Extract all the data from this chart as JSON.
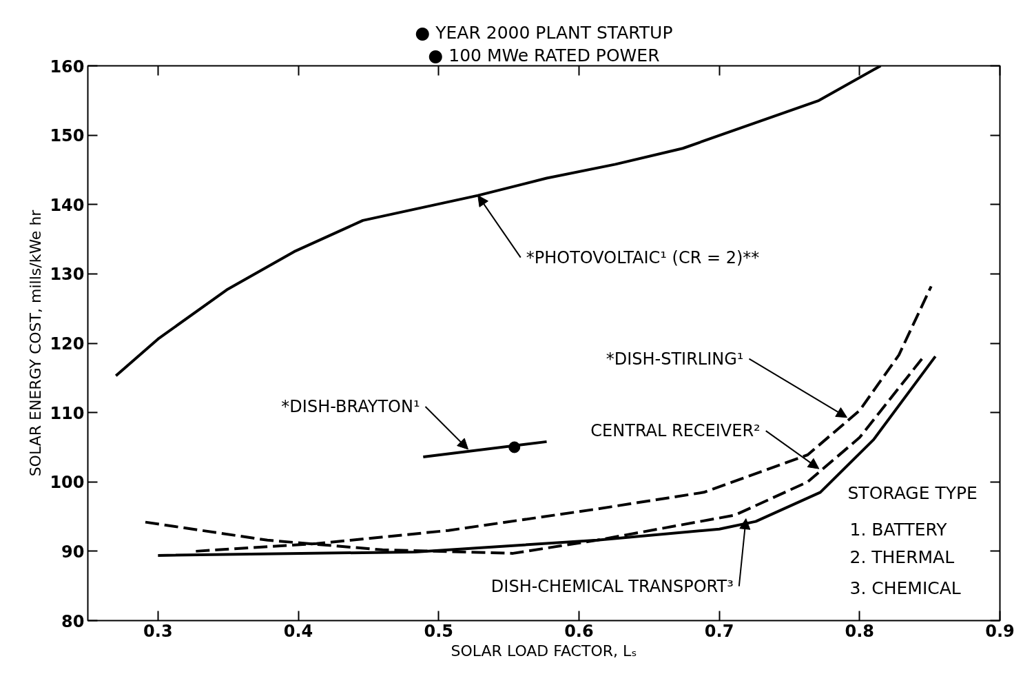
{
  "chart_data": {
    "type": "line",
    "xlabel": "SOLAR LOAD FACTOR, Lₛ",
    "ylabel": "SOLAR ENERGY COST, mills/kWe hr",
    "xlim": [
      0.25,
      0.9
    ],
    "ylim": [
      80,
      160
    ],
    "xticks": [
      {
        "value": 0.3,
        "label": "0.3"
      },
      {
        "value": 0.4,
        "label": "0.4"
      },
      {
        "value": 0.5,
        "label": "0.5"
      },
      {
        "value": 0.6,
        "label": "0.6"
      },
      {
        "value": 0.7,
        "label": "0.7"
      },
      {
        "value": 0.8,
        "label": "0.8"
      },
      {
        "value": 0.9,
        "label": "0.9"
      }
    ],
    "yticks": [
      80,
      90,
      100,
      110,
      120,
      130,
      140,
      150,
      160
    ],
    "grid": false,
    "series": [
      {
        "color": "#000000",
        "line_style": "solid",
        "x": [
          0.27,
          0.3,
          0.349,
          0.397,
          0.446,
          0.528,
          0.577,
          0.626,
          0.674,
          0.723,
          0.771,
          0.815
        ],
        "values": [
          115.3,
          120.6,
          127.7,
          133.2,
          137.7,
          141.3,
          143.8,
          145.8,
          148.1,
          151.6,
          155.0,
          160.0
        ]
      },
      {
        "color": "#000000",
        "line_style": "solid",
        "x": [
          0.489,
          0.577
        ],
        "values": [
          103.6,
          105.8
        ]
      },
      {
        "type": "scatter",
        "marker": "circle",
        "color": "#000000",
        "x": [
          0.554
        ],
        "values": [
          105.0
        ]
      },
      {
        "color": "#000000",
        "line_style": "dashed",
        "x": [
          0.327,
          0.413,
          0.507,
          0.613,
          0.689,
          0.763,
          0.8,
          0.828,
          0.851
        ],
        "values": [
          90.0,
          91.1,
          93.0,
          96.1,
          98.5,
          103.9,
          110.3,
          118.3,
          128.2
        ]
      },
      {
        "color": "#000000",
        "line_style": "dashed",
        "x": [
          0.291,
          0.378,
          0.46,
          0.553,
          0.613,
          0.711,
          0.763,
          0.8,
          0.845
        ],
        "values": [
          94.2,
          91.6,
          90.2,
          89.7,
          91.6,
          95.2,
          100.0,
          106.4,
          117.9
        ]
      },
      {
        "color": "#000000",
        "line_style": "solid",
        "x": [
          0.3,
          0.483,
          0.613,
          0.7,
          0.726,
          0.772,
          0.81,
          0.854
        ],
        "values": [
          89.4,
          89.9,
          91.6,
          93.2,
          94.3,
          98.5,
          106.1,
          118.1
        ]
      }
    ],
    "annotations": [
      {
        "text": "*PHOTOVOLTAIC¹ (CR = 2)**",
        "x": 0.528,
        "y": 141.3
      },
      {
        "text": "*DISH-BRAYTON¹",
        "x": 0.521,
        "y": 104.7
      },
      {
        "text": "*DISH-STIRLING¹",
        "x": 0.791,
        "y": 109.3
      },
      {
        "text": "CENTRAL RECEIVER²",
        "x": 0.771,
        "y": 101.9
      },
      {
        "text": "DISH-CHEMICAL TRANSPORT³",
        "x": 0.719,
        "y": 94.7
      },
      "● YEAR 2000 PLANT STARTUP",
      "● 100 MWe RATED POWER",
      "STORAGE TYPE",
      "1.  BATTERY",
      "2.  THERMAL",
      "3.  CHEMICAL"
    ]
  }
}
